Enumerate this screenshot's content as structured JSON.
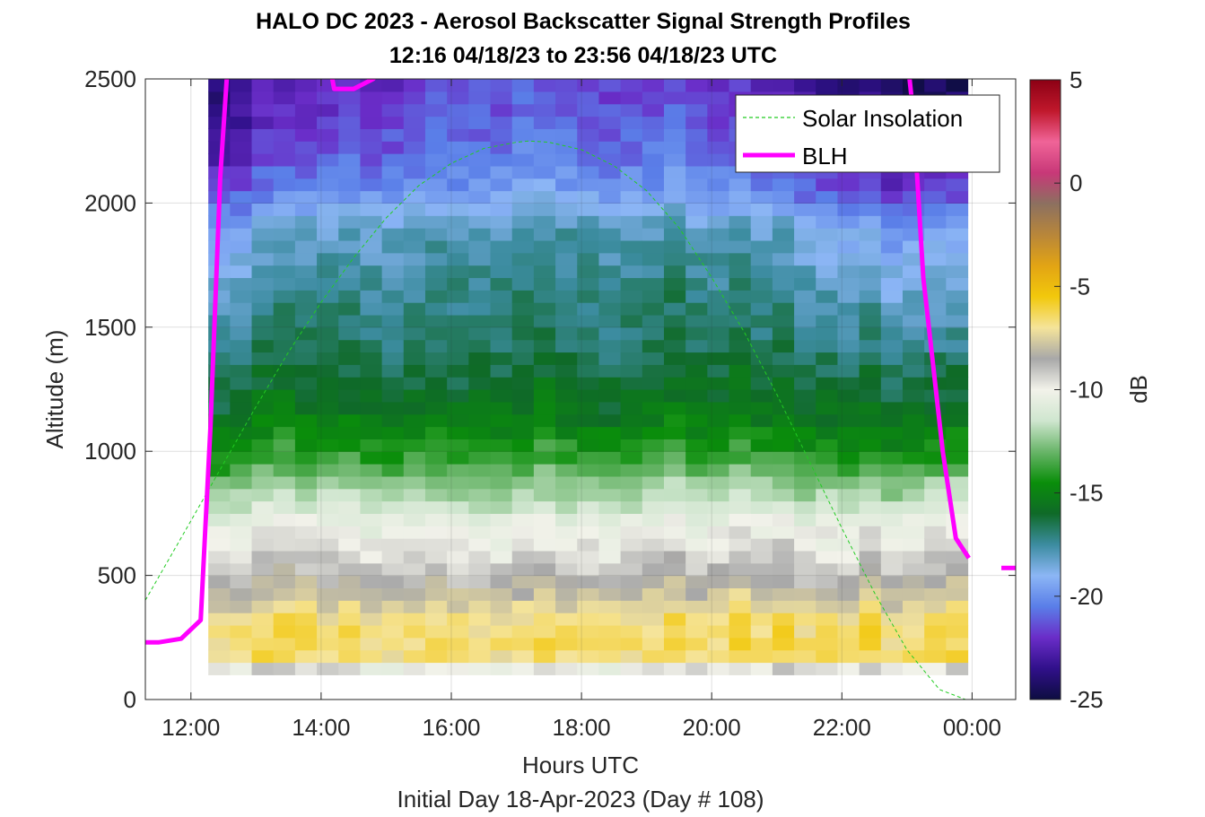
{
  "chart_data": {
    "type": "heatmap",
    "title_line1": "HALO DC 2023 - Aerosol Backscatter Signal Strength Profiles",
    "title_line2": "12:16 04/18/23 to 23:56 04/18/23  UTC",
    "xlabel": "Hours UTC",
    "xlabel2": "Initial Day 18-Apr-2023 (Day # 108)",
    "ylabel": "Altitude (m)",
    "xlim": [
      11.3,
      24.67
    ],
    "ylim": [
      0,
      2500
    ],
    "x_ticks": [
      12,
      14,
      16,
      18,
      20,
      22,
      24
    ],
    "x_tick_labels": [
      "12:00",
      "14:00",
      "16:00",
      "18:00",
      "20:00",
      "22:00",
      "00:00"
    ],
    "y_ticks": [
      0,
      500,
      1000,
      1500,
      2000,
      2500
    ],
    "y_tick_labels": [
      "0",
      "500",
      "1000",
      "1500",
      "2000",
      "2500"
    ],
    "grid": true,
    "colorbar": {
      "label": "dB",
      "range": [
        -25,
        5
      ],
      "ticks": [
        5,
        0,
        -5,
        -10,
        -15,
        -20,
        -25
      ],
      "tick_labels": [
        "5",
        "0",
        "-5",
        "-10",
        "-15",
        "-20",
        "-25"
      ],
      "colors": [
        "#0d0d40",
        "#30108a",
        "#6a2dc8",
        "#5a7ee8",
        "#8cb6f5",
        "#3c8ca0",
        "#0f6a28",
        "#0a8e0a",
        "#69b569",
        "#cfe6cf",
        "#f2f2ea",
        "#a8a8a8",
        "#f5e49a",
        "#f2c80c",
        "#e2a414",
        "#b8863a",
        "#8c7060",
        "#c83878",
        "#f06498",
        "#c0182c",
        "#8c0014"
      ]
    },
    "heatmap": {
      "time_start": 12.267,
      "time_end": 23.933,
      "bins": 35,
      "altitude_start": 100,
      "altitude_end": 2500,
      "altitude_step": 50,
      "profile_shape": [
        [
          100,
          -13
        ],
        [
          150,
          -6.5
        ],
        [
          300,
          -6.5
        ],
        [
          450,
          -8.2
        ],
        [
          600,
          -9.6
        ],
        [
          700,
          -10.2
        ],
        [
          800,
          -11.6
        ],
        [
          950,
          -13.3
        ],
        [
          1150,
          -15.3
        ],
        [
          1400,
          -16.4
        ],
        [
          1700,
          -17.0
        ],
        [
          1900,
          -17.6
        ],
        [
          2050,
          -19.4
        ],
        [
          2200,
          -20.3
        ],
        [
          2500,
          -21.2
        ]
      ]
    },
    "series": [
      {
        "name": "Solar Insolation",
        "color": "#22cc22",
        "style": "dashed",
        "x": [
          11.3,
          12.0,
          12.5,
          13.0,
          13.5,
          14.0,
          14.5,
          15.0,
          15.5,
          16.0,
          16.5,
          17.0,
          17.2,
          17.5,
          18.0,
          18.5,
          19.0,
          19.5,
          20.0,
          20.5,
          21.0,
          21.5,
          22.0,
          22.5,
          23.0,
          23.5,
          23.9,
          24.67
        ],
        "y": [
          400,
          720,
          950,
          1180,
          1400,
          1600,
          1780,
          1940,
          2070,
          2160,
          2220,
          2245,
          2250,
          2245,
          2215,
          2150,
          2050,
          1900,
          1700,
          1480,
          1230,
          960,
          690,
          430,
          200,
          40,
          0,
          0
        ]
      },
      {
        "name": "BLH",
        "color": "#ff00ff",
        "style": "solid",
        "x": [
          11.3,
          11.5,
          11.85,
          12.15,
          12.3,
          12.45,
          12.55,
          12.65,
          13.1,
          14.1,
          14.2,
          14.5,
          14.8,
          15.0,
          23.0,
          23.1,
          23.25,
          23.4,
          23.55,
          23.75,
          23.95
        ],
        "y": [
          230,
          230,
          245,
          320,
          1100,
          2100,
          2500,
          2600,
          2700,
          2600,
          2460,
          2460,
          2500,
          2560,
          2600,
          2350,
          1700,
          1350,
          1000,
          650,
          570
        ]
      }
    ],
    "blh_tail": {
      "x": [
        24.45,
        24.67
      ],
      "y": [
        530,
        530
      ]
    },
    "legend": {
      "position": "top-right",
      "entries": [
        "Solar Insolation",
        "BLH"
      ]
    }
  }
}
